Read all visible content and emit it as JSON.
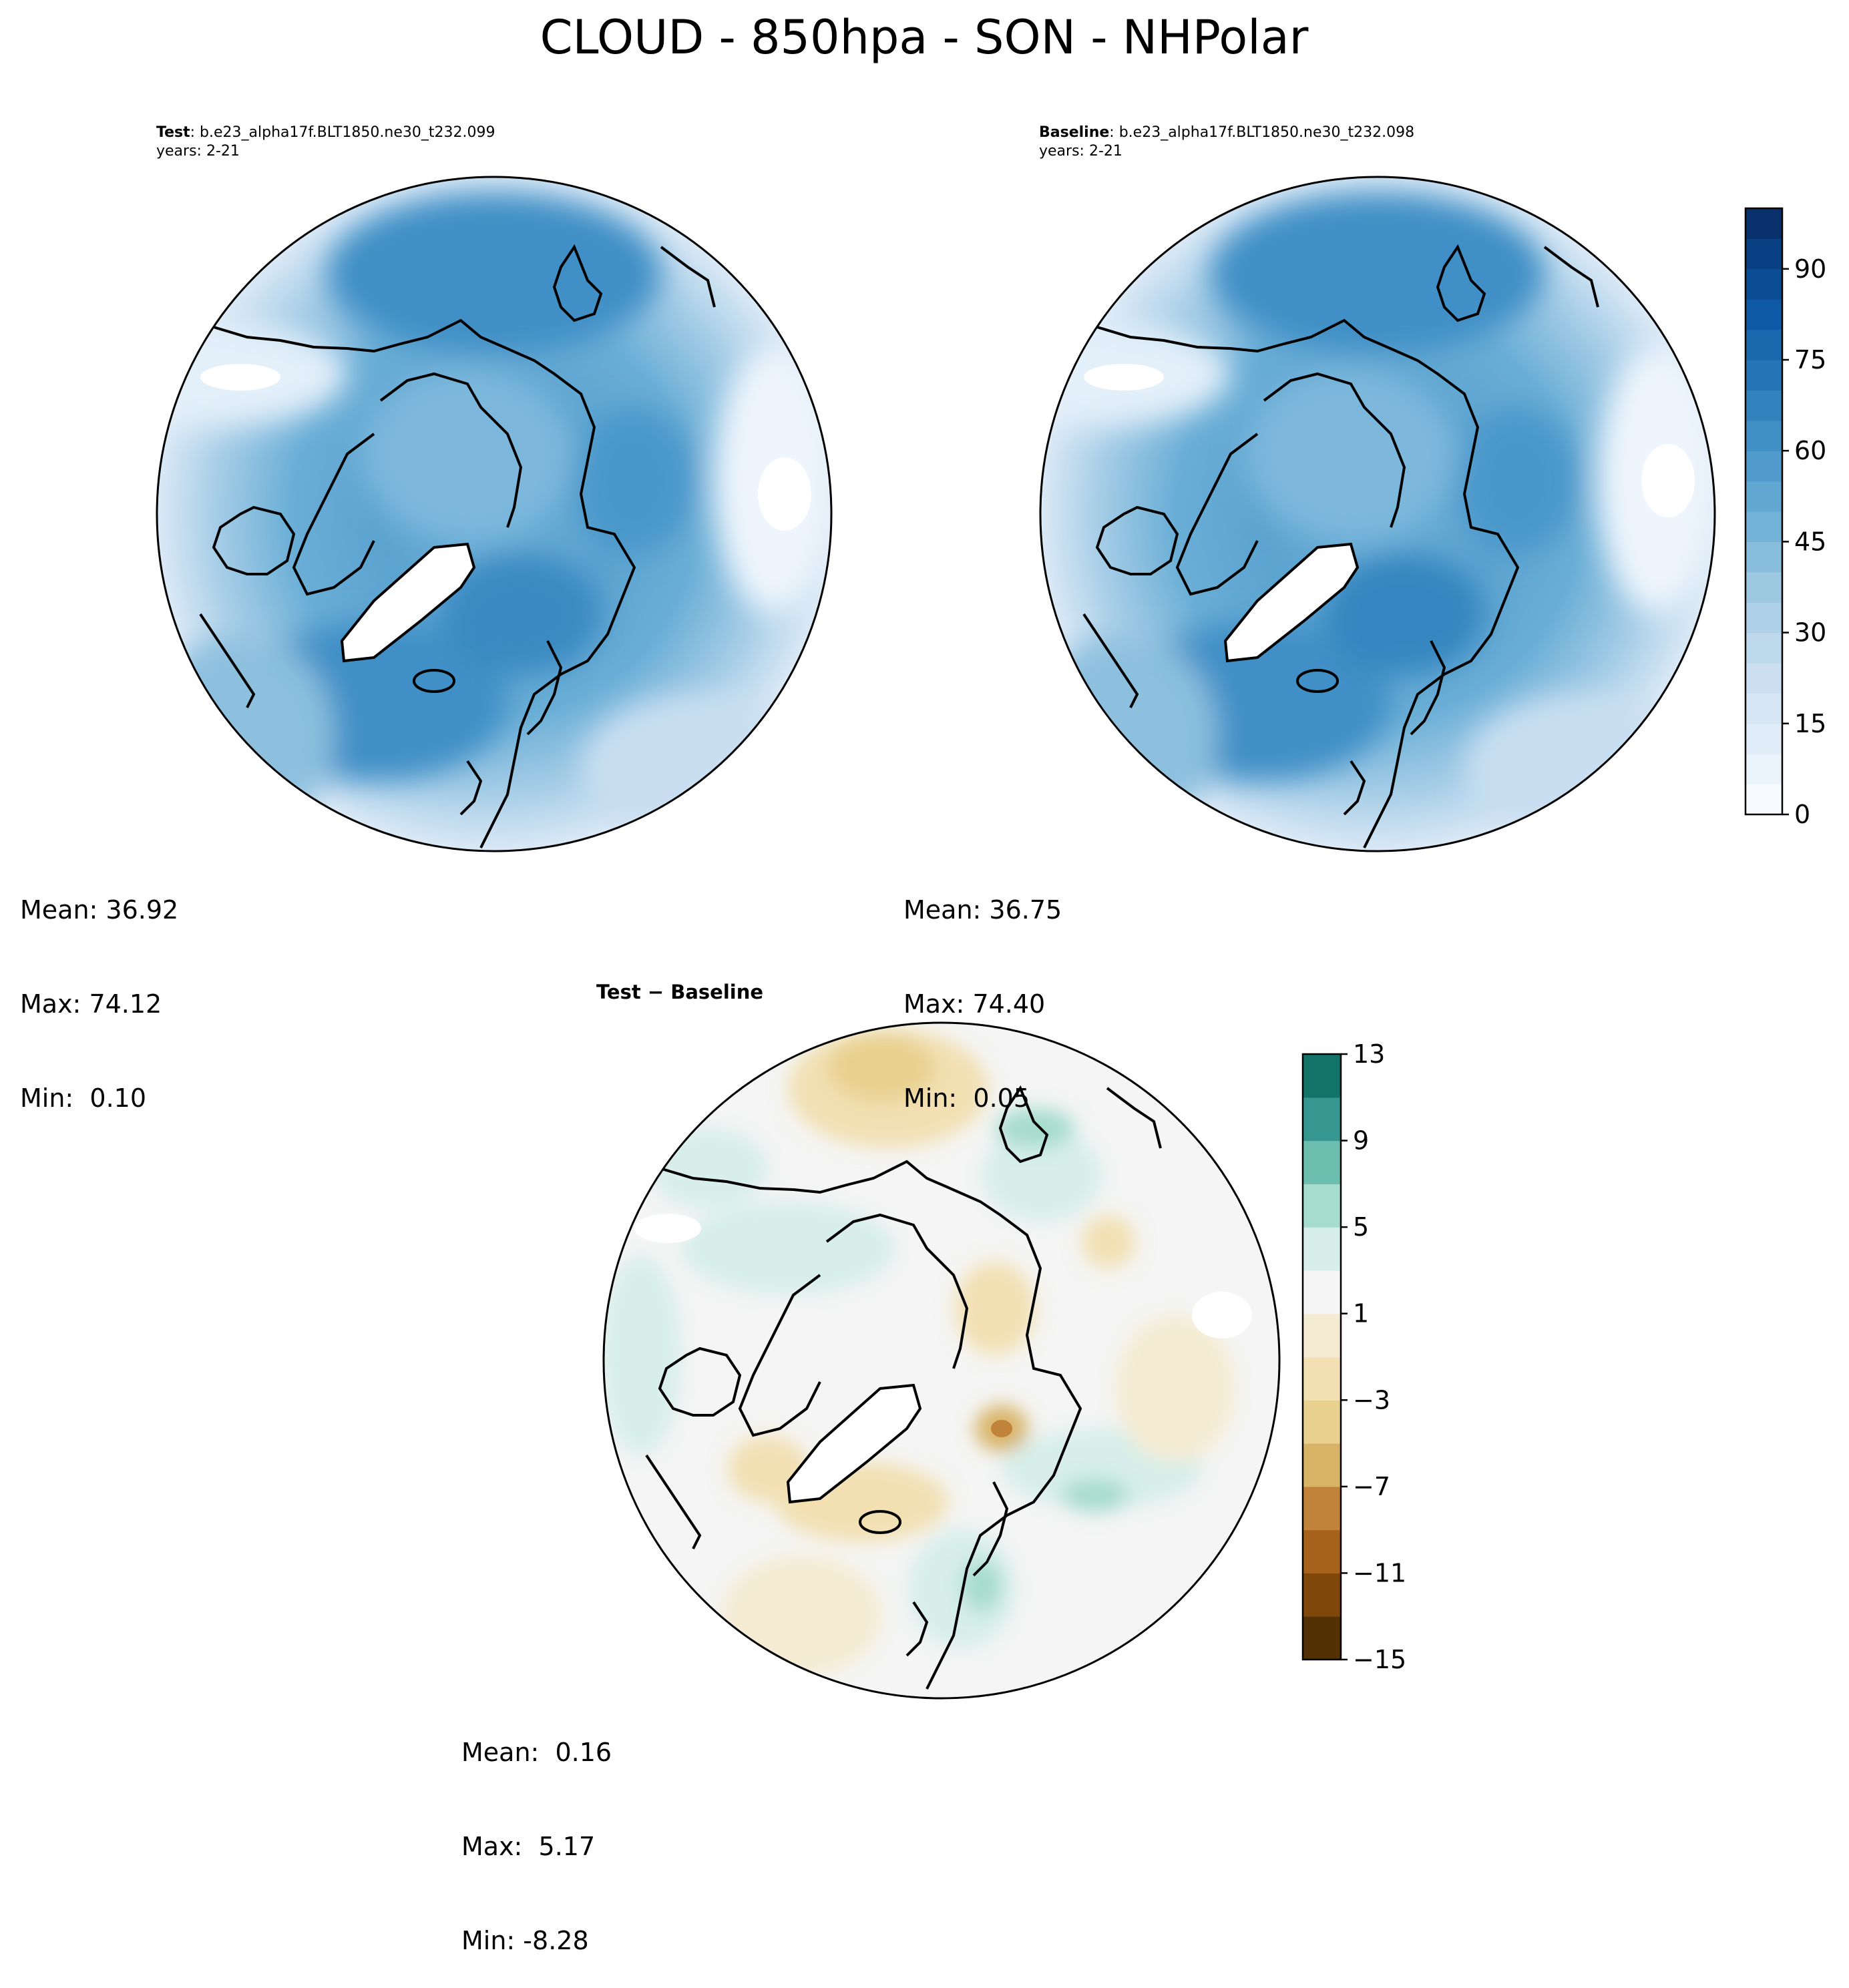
{
  "title": "CLOUD - 850hpa - SON - NHPolar",
  "panels": [
    {
      "id": "test",
      "label_bold": "Test",
      "label_rest": ": b.e23_alpha17f.BLT1850.ne30_t232.099",
      "years": "years: 2-21",
      "mean": "Mean: 36.92",
      "max": "Max: 74.12",
      "min": "Min:  0.10"
    },
    {
      "id": "baseline",
      "label_bold": "Baseline",
      "label_rest": ": b.e23_alpha17f.BLT1850.ne30_t232.098",
      "years": "years: 2-21",
      "mean": "Mean: 36.75",
      "max": "Max: 74.40",
      "min": "Min:  0.05"
    },
    {
      "id": "diff",
      "label_bold": "Test − Baseline",
      "label_rest": "",
      "years": "",
      "mean": "Mean:  0.16",
      "max": "Max:  5.17",
      "min": "Min: -8.28"
    }
  ],
  "colorbars": {
    "main": {
      "ticks": [
        "0",
        "15",
        "30",
        "45",
        "60",
        "75",
        "90"
      ],
      "tick_values": [
        0,
        15,
        30,
        45,
        60,
        75,
        90
      ],
      "min": 0,
      "max": 100,
      "levels": 20,
      "colors": [
        "#f7fbff",
        "#ebf3fb",
        "#e0ecf8",
        "#d6e6f4",
        "#cbdff1",
        "#bed8ec",
        "#afd1e7",
        "#9cc8e2",
        "#88bedc",
        "#74b3d8",
        "#61a7d2",
        "#509bcb",
        "#4190c5",
        "#3282be",
        "#2575b7",
        "#1a69af",
        "#0e5aa6",
        "#0a4d95",
        "#084083",
        "#08306b"
      ]
    },
    "diff": {
      "ticks": [
        "13",
        "9",
        "5",
        "1",
        "−3",
        "−7",
        "−11",
        "−15"
      ],
      "tick_values": [
        13,
        9,
        5,
        1,
        -3,
        -7,
        -11,
        -15
      ],
      "min": -15,
      "max": 13,
      "colors_bottom_up": [
        "#543005",
        "#7f470a",
        "#a6611a",
        "#c08339",
        "#d8b366",
        "#e8d08e",
        "#f2e0b2",
        "#f5ebd2",
        "#f4f5f4",
        "#d7eeea",
        "#a6dccd",
        "#6cbfae",
        "#35978f",
        "#127468",
        "#01523f"
      ]
    },
    "diff_color_stops": [
      "#f5ebd2",
      "#f2e0b2",
      "#e8d08e",
      "#d8b366",
      "#c08339",
      "#f4f5f4",
      "#d7eeea",
      "#a6dccd"
    ]
  },
  "map_colors": {
    "frame": "#000000",
    "coast": "#000000",
    "ice": "#ffffff"
  }
}
